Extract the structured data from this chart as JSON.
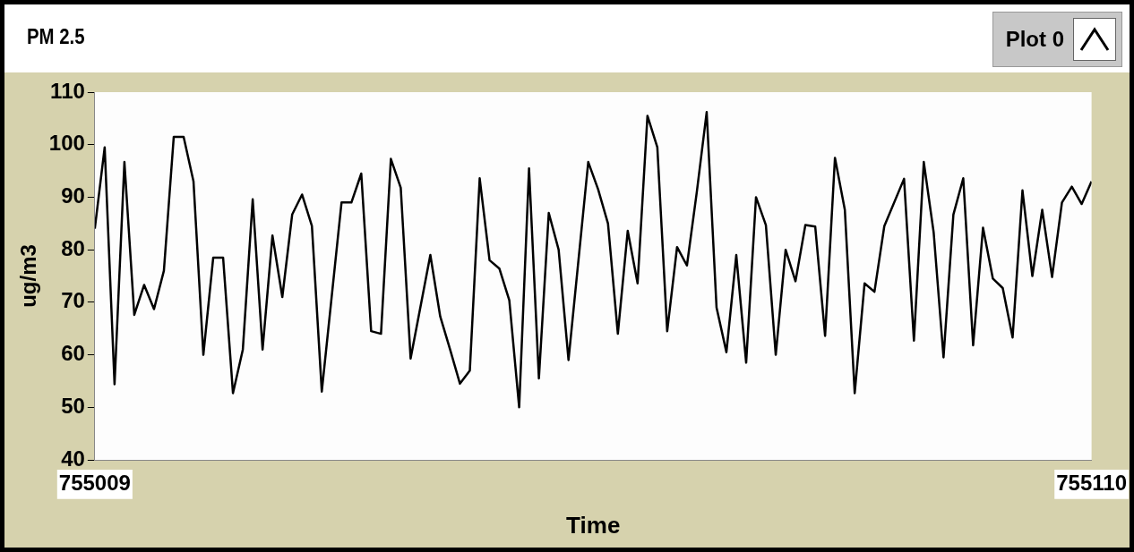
{
  "chart_data": {
    "type": "line",
    "title": "PM 2.5",
    "xlabel": "Time",
    "ylabel": "ug/m3",
    "xlim": [
      755009,
      755110
    ],
    "xticks": [
      755009,
      755110
    ],
    "ylim": [
      40,
      110
    ],
    "yticks": [
      40,
      50,
      60,
      70,
      80,
      90,
      100,
      110
    ],
    "grid": false,
    "legend": "top right",
    "marker": "none",
    "line_style": "solid",
    "series": [
      {
        "name": "Plot 0",
        "color": "#000000",
        "x": [
          755009,
          755010,
          755011,
          755012,
          755013,
          755014,
          755015,
          755016,
          755017,
          755018,
          755019,
          755020,
          755021,
          755022,
          755023,
          755024,
          755025,
          755026,
          755027,
          755028,
          755029,
          755030,
          755031,
          755032,
          755034,
          755035,
          755036,
          755037,
          755038,
          755039,
          755040,
          755041,
          755043,
          755044,
          755045,
          755046,
          755047,
          755048,
          755049,
          755050,
          755051,
          755052,
          755053,
          755054,
          755055,
          755056,
          755057,
          755059,
          755060,
          755061,
          755062,
          755063,
          755064,
          755065,
          755066,
          755067,
          755068,
          755069,
          755070,
          755071,
          755072,
          755073,
          755074,
          755075,
          755076,
          755077,
          755078,
          755079,
          755080,
          755081,
          755082,
          755083,
          755084,
          755085,
          755086,
          755087,
          755088,
          755089,
          755091,
          755092,
          755093,
          755094,
          755095,
          755096,
          755097,
          755098,
          755099,
          755100,
          755101,
          755102,
          755103,
          755104,
          755105,
          755106,
          755107,
          755108,
          755109,
          755110
        ],
        "values": [
          84,
          99.5,
          54.4,
          96.7,
          67.6,
          73.3,
          68.7,
          76,
          101.5,
          101.5,
          93,
          60,
          78.5,
          78.5,
          52.7,
          61,
          89.6,
          61,
          82.7,
          71,
          86.7,
          90.5,
          84.5,
          53,
          89,
          89,
          94.5,
          64.5,
          64,
          97.3,
          91.8,
          59.3,
          79,
          67.3,
          61,
          54.5,
          57,
          93.6,
          78,
          76.4,
          70.4,
          50,
          95.5,
          55.5,
          87,
          80,
          59,
          96.7,
          91.5,
          85,
          64,
          83.6,
          73.6,
          105.5,
          99.5,
          64.5,
          80.5,
          77,
          91,
          106.2,
          69,
          60.5,
          79,
          58.5,
          90,
          84.7,
          60,
          80,
          74,
          84.7,
          84.4,
          63.6,
          97.5,
          87.6,
          52.7,
          73.6,
          72,
          84.5,
          93.5,
          62.7,
          96.7,
          83.3,
          59.5,
          86.7,
          93.6,
          61.8,
          84.2,
          74.5,
          72.7,
          63.3,
          91.3,
          75,
          87.6,
          74.8,
          89,
          92,
          88.7,
          93
        ]
      }
    ]
  }
}
